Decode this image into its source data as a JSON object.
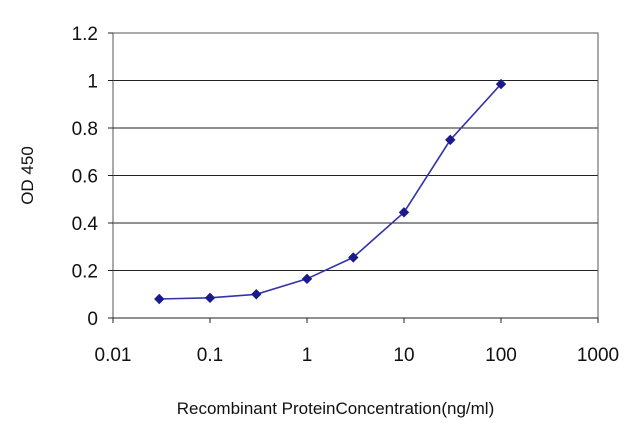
{
  "chart_data": {
    "type": "line",
    "title": "",
    "xlabel": "Recombinant ProteinConcentration(ng/ml)",
    "ylabel": "OD 450",
    "x_scale": "log",
    "xlim": [
      0.01,
      1000
    ],
    "ylim": [
      0,
      1.2
    ],
    "x_ticks": [
      0.01,
      0.1,
      1,
      10,
      100,
      1000
    ],
    "x_tick_labels": [
      "0.01",
      "0.1",
      "1",
      "10",
      "100",
      "1000"
    ],
    "y_ticks": [
      0,
      0.2,
      0.4,
      0.6,
      0.8,
      1,
      1.2
    ],
    "y_tick_labels": [
      "0",
      "0.2",
      "0.4",
      "0.6",
      "0.8",
      "1",
      "1.2"
    ],
    "grid": "horizontal",
    "legend": "none",
    "series": [
      {
        "x": [
          0.03,
          0.1,
          0.3,
          1,
          3,
          10,
          30,
          100
        ],
        "y": [
          0.08,
          0.085,
          0.1,
          0.165,
          0.255,
          0.445,
          0.75,
          0.985
        ]
      }
    ],
    "colors": {
      "line": "#3333aa",
      "marker": "#1a1a8c",
      "grid": "#222222",
      "frame": "#555555"
    }
  }
}
